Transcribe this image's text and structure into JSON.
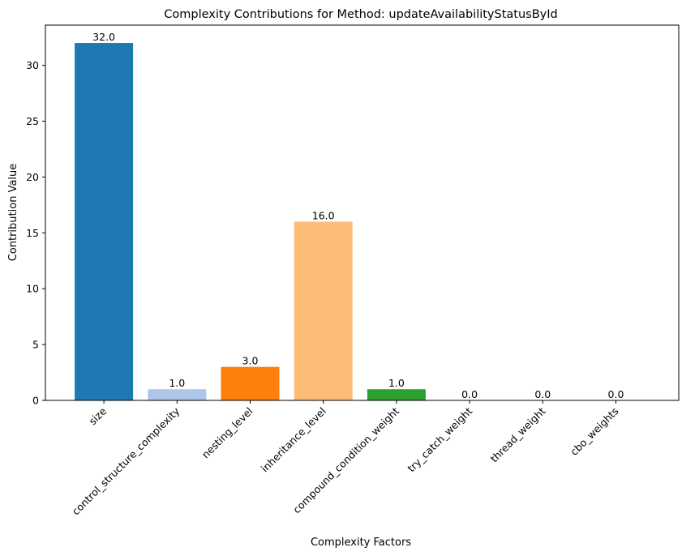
{
  "chart_data": {
    "type": "bar",
    "title": "Complexity Contributions for Method: updateAvailabilityStatusById",
    "xlabel": "Complexity Factors",
    "ylabel": "Contribution Value",
    "categories": [
      "size",
      "control_structure_complexity",
      "nesting_level",
      "inheritance_level",
      "compound_condition_weight",
      "try_catch_weight",
      "thread_weight",
      "cbo_weights"
    ],
    "values": [
      32.0,
      1.0,
      3.0,
      16.0,
      1.0,
      0.0,
      0.0,
      0.0
    ],
    "value_labels": [
      "32.0",
      "1.0",
      "3.0",
      "16.0",
      "1.0",
      "0.0",
      "0.0",
      "0.0"
    ],
    "colors": [
      "#1f77b4",
      "#aec7e8",
      "#ff7f0e",
      "#ffbb78",
      "#2ca02c",
      "#98df8a",
      "#d62728",
      "#ff9896"
    ],
    "ylim": [
      0,
      33.6
    ],
    "yticks": [
      0,
      5,
      10,
      15,
      20,
      25,
      30
    ],
    "grid": false,
    "legend": "none"
  }
}
